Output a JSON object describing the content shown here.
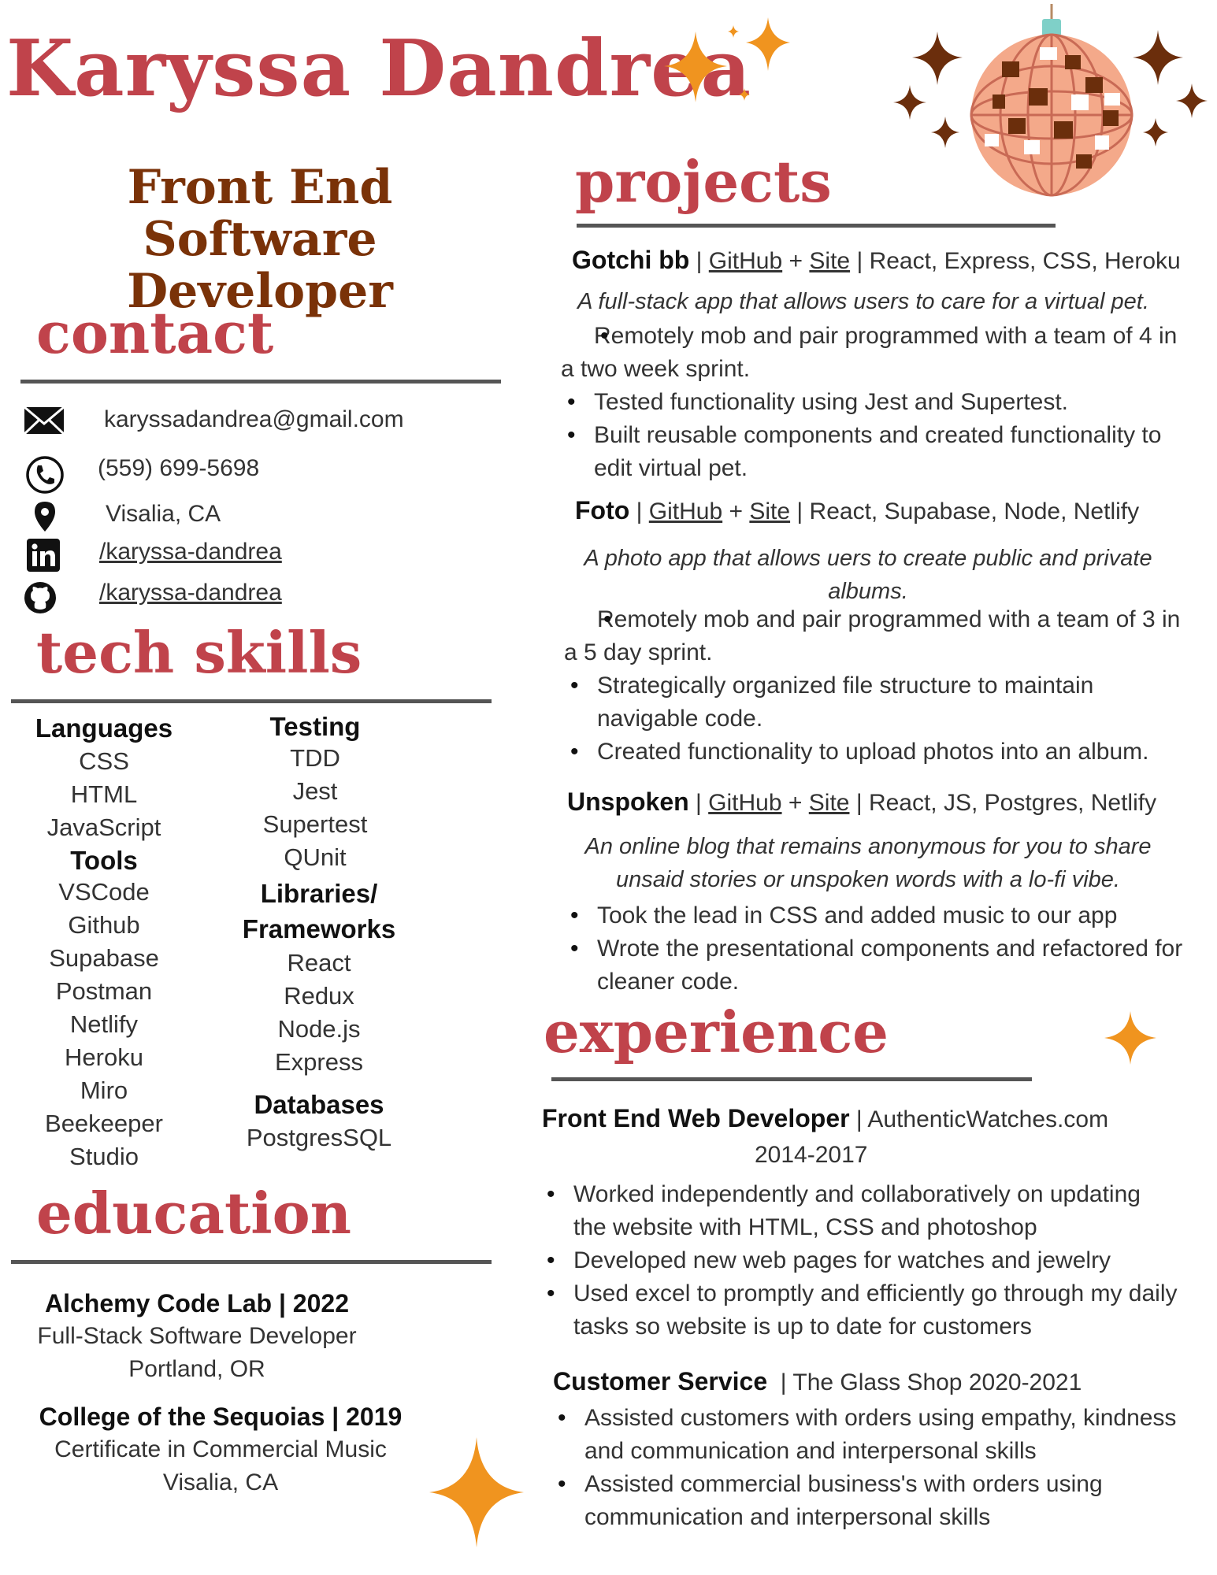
{
  "header": {
    "name": "Karyssa Dandrea",
    "role_line1": "Front End Software",
    "role_line2": "Developer"
  },
  "colors": {
    "accent": "#c0434b",
    "brown": "#7a3208",
    "star": "#f0941f",
    "star_dark": "#6b2e0c",
    "disco_ball": "#f4a98a",
    "rule": "#555555"
  },
  "contact": {
    "heading": "contact",
    "email": "karyssadandrea@gmail.com",
    "phone": "(559) 699-5698",
    "location": "Visalia, CA",
    "linkedin": "/karyssa-dandrea",
    "github": "/karyssa-dandrea",
    "icons": [
      "envelope-icon",
      "phone-icon",
      "map-pin-icon",
      "linkedin-icon",
      "github-icon"
    ]
  },
  "tech_skills": {
    "heading": "tech skills",
    "languages_title": "Languages",
    "languages": [
      "CSS",
      "HTML",
      "JavaScript"
    ],
    "tools_title": "Tools",
    "tools": [
      "VSCode",
      "Github",
      "Supabase",
      "Postman",
      "Netlify",
      "Heroku",
      "Miro",
      "Beekeeper",
      "Studio"
    ],
    "testing_title": "Testing",
    "testing": [
      "TDD",
      "Jest",
      "Supertest",
      "QUnit"
    ],
    "libraries_title_1": "Libraries/",
    "libraries_title_2": "Frameworks",
    "libraries": [
      "React",
      "Redux",
      "Node.js",
      "Express"
    ],
    "databases_title": "Databases",
    "databases": [
      "PostgresSQL"
    ]
  },
  "education": {
    "heading": "education",
    "entries": [
      {
        "title": "Alchemy Code Lab | 2022",
        "line1": "Full-Stack Software Developer",
        "line2": "Portland, OR"
      },
      {
        "title": "College of the Sequoias | 2019",
        "line1": "Certificate in Commercial Music",
        "line2": "Visalia, CA"
      }
    ]
  },
  "projects": {
    "heading": "projects",
    "items": [
      {
        "name": "Gotchi bb",
        "sep1": "|",
        "github": "GitHub",
        "plus": "+",
        "site": "Site",
        "stack": "| React, Express, CSS, Heroku",
        "description": "A full-stack app that allows users to care for a virtual pet.",
        "bullets": [
          "Remotely mob and pair programmed with a team of 4 in a two week sprint.",
          "Tested functionality using Jest and Supertest.",
          "Built reusable components and created functionality to edit virtual pet."
        ]
      },
      {
        "name": "Foto",
        "sep1": "|",
        "github": "GitHub",
        "plus": "+",
        "site": "Site",
        "stack": "| React, Supabase, Node, Netlify",
        "description_1": "A photo app that allows uers to create public and private",
        "description_2": "albums.",
        "bullets": [
          "Remotely mob and pair programmed with a team of 3 in a 5 day sprint.",
          "Strategically organized file structure to maintain navigable code.",
          "Created functionality to upload photos into an album."
        ]
      },
      {
        "name": "Unspoken",
        "sep1": "|",
        "github": "GitHub",
        "plus": "+",
        "site": "Site",
        "stack": "| React, JS, Postgres, Netlify",
        "description_1": "An online blog that remains anonymous for you to share",
        "description_2": "unsaid stories or unspoken words with a lo-fi vibe.",
        "bullets": [
          "Took the lead in CSS and added music to our app",
          "Wrote the presentational components and refactored for cleaner code."
        ]
      }
    ]
  },
  "experience": {
    "heading": "experience",
    "jobs": [
      {
        "title": "Front End Web Developer",
        "company": "| AuthenticWatches.com",
        "dates": "2014-2017",
        "bullets": [
          "Worked independently and collaboratively on updating the website with HTML, CSS and photoshop",
          "Developed new web pages for watches and jewelry",
          "Used excel to promptly and efficiently go through my daily tasks so website is up to date for customers"
        ]
      },
      {
        "title": "Customer Service",
        "company": "| The Glass Shop 2020-2021",
        "bullets": [
          "Assisted customers with orders using empathy, kindness and communication and interpersonal skills",
          "Assisted commercial business's with orders using communication and interpersonal skills"
        ]
      }
    ]
  }
}
